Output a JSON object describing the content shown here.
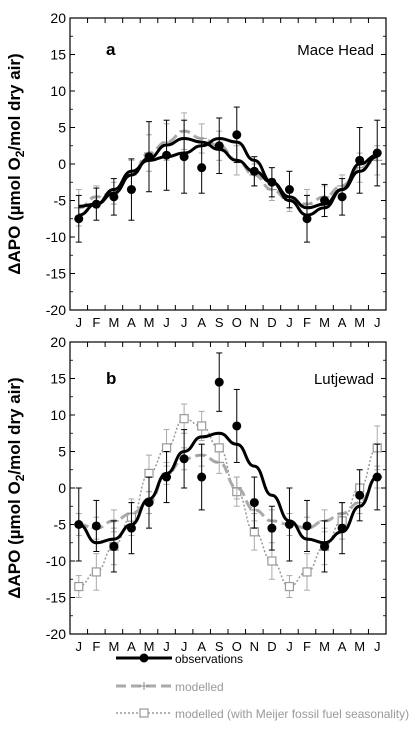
{
  "chart_data": [
    {
      "type": "line",
      "panel_label": "a",
      "site": "Mace Head",
      "ylabel": "ΔAPO (µmol O2/mol dry air)",
      "ylim": [
        -20,
        20
      ],
      "yticks": [
        -20,
        -15,
        -10,
        -5,
        0,
        5,
        10,
        15,
        20
      ],
      "x_tick_labels": [
        "J",
        "F",
        "M",
        "A",
        "M",
        "J",
        "J",
        "A",
        "S",
        "O",
        "N",
        "D",
        "J",
        "F",
        "M",
        "A",
        "M",
        "J"
      ],
      "xlim": [
        0,
        18
      ],
      "series": [
        {
          "key": "observations_points",
          "x": [
            0.5,
            1.5,
            2.5,
            3.5,
            4.5,
            5.5,
            6.5,
            7.5,
            8.5,
            9.5,
            10.5,
            11.5,
            12.5,
            13.5,
            14.5,
            15.5,
            16.5,
            17.5
          ],
          "y": [
            -7.5,
            -5.5,
            -4.5,
            -3.5,
            1.0,
            1.2,
            1.0,
            -0.5,
            2.5,
            4.0,
            -1.0,
            -2.5,
            -3.5,
            -7.5,
            -5.0,
            -4.5,
            0.5,
            1.5
          ],
          "yerr": [
            3.2,
            2.2,
            2.5,
            4.2,
            4.8,
            4.8,
            5.0,
            3.5,
            3.8,
            3.8,
            2.0,
            2.0,
            2.5,
            3.2,
            2.2,
            2.5,
            4.5,
            4.5
          ]
        },
        {
          "key": "observations_fit",
          "x": [
            0.5,
            1.5,
            2.5,
            3.5,
            4.5,
            5.5,
            6.5,
            7.5,
            8.5,
            9.5,
            10.5,
            11.5,
            12.5,
            13.5,
            14.5,
            15.5,
            16.5,
            17.5
          ],
          "y": [
            -5.8,
            -5.5,
            -4.0,
            -1.5,
            0.8,
            2.6,
            3.5,
            3.0,
            2.0,
            0.5,
            -1.0,
            -2.5,
            -4.5,
            -6.0,
            -5.5,
            -3.5,
            -1.0,
            1.0
          ]
        },
        {
          "key": "observations_fit2",
          "x": [
            0.5,
            1.5,
            2.5,
            3.5,
            4.5,
            5.5,
            6.5,
            7.5,
            8.5,
            9.5,
            10.5,
            11.5,
            12.5,
            13.5,
            14.5,
            15.5,
            16.5,
            17.5
          ],
          "y": [
            -7.0,
            -5.5,
            -3.5,
            -1.0,
            0.5,
            1.0,
            1.5,
            2.5,
            3.5,
            3.0,
            0.5,
            -2.5,
            -5.0,
            -7.0,
            -6.0,
            -3.5,
            0.0,
            1.2
          ]
        },
        {
          "key": "modelled",
          "x": [
            0.5,
            1.5,
            2.5,
            3.5,
            4.5,
            5.5,
            6.5,
            7.5,
            8.5,
            9.5,
            10.5,
            11.5,
            12.5,
            13.5,
            14.5,
            15.5,
            16.5,
            17.5
          ],
          "y": [
            -6.0,
            -4.5,
            -4.0,
            -1.5,
            1.5,
            3.0,
            4.5,
            3.5,
            2.5,
            0.5,
            -1.5,
            -3.5,
            -5.0,
            -5.5,
            -4.5,
            -3.0,
            -0.5,
            0.5
          ],
          "yerr": [
            2.5,
            1.5,
            1.5,
            2.0,
            2.5,
            2.5,
            2.5,
            2.0,
            2.0,
            2.0,
            1.5,
            1.5,
            1.5,
            2.0,
            1.5,
            1.5,
            2.0,
            2.0
          ]
        }
      ]
    },
    {
      "type": "line",
      "panel_label": "b",
      "site": "Lutjewad",
      "ylabel": "ΔAPO (µmol O2/mol dry air)",
      "ylim": [
        -20,
        20
      ],
      "yticks": [
        -20,
        -15,
        -10,
        -5,
        0,
        5,
        10,
        15,
        20
      ],
      "x_tick_labels": [
        "J",
        "F",
        "M",
        "A",
        "M",
        "J",
        "J",
        "A",
        "S",
        "O",
        "N",
        "D",
        "J",
        "F",
        "M",
        "A",
        "M",
        "J"
      ],
      "xlim": [
        0,
        18
      ],
      "series": [
        {
          "key": "observations",
          "x": [
            0.5,
            1.5,
            2.5,
            3.5,
            4.5,
            5.5,
            6.5,
            7.5,
            8.5,
            9.5,
            10.5,
            11.5,
            12.5,
            13.5,
            14.5,
            15.5,
            16.5,
            17.5
          ],
          "y": [
            -5.0,
            -5.2,
            -8.0,
            -5.5,
            -2.0,
            1.5,
            4.0,
            1.5,
            14.5,
            8.5,
            -2.0,
            -5.5,
            -5.0,
            -5.2,
            -8.0,
            -5.5,
            -1.0,
            1.5
          ],
          "yerr": [
            5.0,
            3.5,
            3.5,
            3.5,
            3.5,
            3.5,
            4.0,
            4.5,
            4.0,
            5.0,
            3.5,
            3.0,
            5.0,
            3.5,
            3.5,
            3.5,
            3.5,
            4.5
          ],
          "fit": [
            -5.0,
            -7.5,
            -7.0,
            -5.0,
            -1.5,
            2.0,
            5.0,
            7.0,
            7.5,
            6.0,
            3.0,
            -1.0,
            -4.5,
            -7.0,
            -7.5,
            -6.0,
            -2.5,
            1.5
          ]
        },
        {
          "key": "modelled",
          "y": [
            -5.0,
            -5.5,
            -4.5,
            -3.5,
            -2.0,
            2.0,
            4.0,
            4.5,
            3.5,
            0.0,
            -3.0,
            -4.5,
            -5.0,
            -5.5,
            -4.5,
            -3.5,
            -2.0,
            1.5
          ],
          "yerr": [
            1.5,
            1.5,
            1.5,
            1.5,
            1.5,
            1.5,
            1.5,
            1.5,
            1.5,
            1.5,
            1.5,
            1.5,
            1.5,
            1.5,
            1.5,
            1.5,
            1.5,
            1.5
          ]
        },
        {
          "key": "modelled_meijer",
          "y": [
            -13.5,
            -11.5,
            -8.0,
            -4.0,
            2.0,
            5.5,
            9.5,
            8.5,
            5.5,
            -0.5,
            -6.0,
            -10.0,
            -13.5,
            -11.5,
            -8.0,
            -4.5,
            0.0,
            5.5
          ],
          "yerr": [
            1.5,
            2.5,
            2.5,
            2.5,
            2.5,
            2.5,
            2.0,
            2.0,
            2.0,
            2.0,
            2.5,
            2.5,
            1.5,
            2.5,
            2.5,
            2.5,
            2.5,
            3.0
          ]
        }
      ]
    }
  ],
  "legend": {
    "items": [
      {
        "key": "observations",
        "label": "observations"
      },
      {
        "key": "modelled",
        "label": "modelled"
      },
      {
        "key": "modelled_meijer",
        "label": "modelled (with Meijer fossil fuel seasonality)"
      }
    ]
  },
  "colors": {
    "observations": "#000000",
    "modelled": "#aaaaaa",
    "modelled_meijer": "#999999"
  }
}
